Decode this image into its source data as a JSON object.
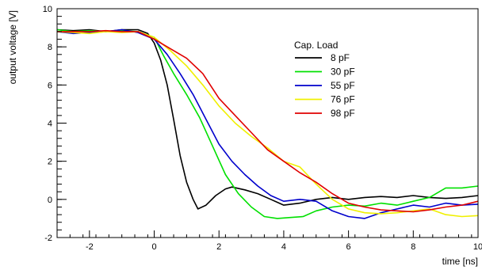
{
  "chart_data": {
    "type": "line",
    "xlabel": "time [ns]",
    "ylabel": "output voltage [V]",
    "xlim": [
      -3,
      10
    ],
    "ylim": [
      -2,
      10
    ],
    "xticks": [
      -2,
      0,
      2,
      4,
      6,
      8,
      10
    ],
    "yticks": [
      -2,
      0,
      2,
      4,
      6,
      8,
      10
    ],
    "grid": false,
    "legend": {
      "title": "Cap. Load",
      "placement": "top-right"
    },
    "series": [
      {
        "name": "8 pF",
        "color": "#000000",
        "x": [
          -3,
          -2.5,
          -2,
          -1.5,
          -1,
          -0.5,
          -0.2,
          0,
          0.2,
          0.4,
          0.6,
          0.8,
          1.0,
          1.2,
          1.35,
          1.6,
          1.9,
          2.2,
          2.4,
          2.8,
          3.2,
          3.6,
          4.0,
          4.5,
          5.0,
          5.5,
          6.0,
          6.5,
          7.0,
          7.5,
          8.0,
          8.5,
          9.0,
          9.5,
          10.0
        ],
        "y": [
          8.9,
          8.85,
          8.9,
          8.8,
          8.9,
          8.9,
          8.7,
          8.2,
          7.3,
          6.0,
          4.2,
          2.3,
          0.9,
          0.0,
          -0.5,
          -0.3,
          0.2,
          0.55,
          0.65,
          0.5,
          0.3,
          0.0,
          -0.3,
          -0.2,
          0.0,
          0.1,
          0.0,
          0.1,
          0.15,
          0.1,
          0.2,
          0.1,
          0.05,
          0.1,
          0.2
        ]
      },
      {
        "name": "30 pF",
        "color": "#00e000",
        "x": [
          -3,
          -2.5,
          -2,
          -1.5,
          -1,
          -0.5,
          0,
          0.3,
          0.6,
          1.0,
          1.4,
          1.8,
          2.2,
          2.6,
          3.0,
          3.4,
          3.8,
          4.2,
          4.6,
          5.0,
          5.5,
          6.0,
          6.5,
          7.0,
          7.5,
          8.0,
          8.5,
          9.0,
          9.5,
          10.0
        ],
        "y": [
          8.9,
          8.8,
          8.85,
          8.8,
          8.85,
          8.8,
          8.5,
          7.5,
          6.6,
          5.5,
          4.3,
          2.8,
          1.3,
          0.3,
          -0.4,
          -0.9,
          -1.0,
          -0.95,
          -0.9,
          -0.6,
          -0.4,
          -0.3,
          -0.35,
          -0.2,
          -0.3,
          -0.1,
          0.1,
          0.6,
          0.6,
          0.7
        ]
      },
      {
        "name": "55 pF",
        "color": "#0000cc",
        "x": [
          -3,
          -2.5,
          -2,
          -1.5,
          -1,
          -0.5,
          0,
          0.4,
          0.8,
          1.2,
          1.6,
          2.0,
          2.4,
          2.8,
          3.2,
          3.6,
          4.0,
          4.5,
          5.0,
          5.5,
          6.0,
          6.5,
          7.0,
          7.5,
          8.0,
          8.5,
          9.0,
          9.5,
          10.0
        ],
        "y": [
          8.8,
          8.7,
          8.75,
          8.8,
          8.9,
          8.75,
          8.4,
          7.6,
          6.6,
          5.5,
          4.2,
          2.9,
          2.0,
          1.3,
          0.7,
          0.2,
          -0.1,
          0.0,
          -0.1,
          -0.6,
          -0.9,
          -1.0,
          -0.7,
          -0.5,
          -0.3,
          -0.4,
          -0.2,
          -0.3,
          -0.25
        ]
      },
      {
        "name": "76 pF",
        "color": "#f0f000",
        "x": [
          -3,
          -2.5,
          -2,
          -1.5,
          -1,
          -0.5,
          0,
          0.5,
          1.0,
          1.5,
          2.0,
          2.5,
          3.0,
          3.5,
          4.0,
          4.5,
          5.0,
          5.5,
          6.0,
          6.5,
          7.0,
          7.5,
          8.0,
          8.5,
          9.0,
          9.5,
          10.0
        ],
        "y": [
          8.8,
          8.75,
          8.7,
          8.8,
          8.75,
          8.8,
          8.5,
          7.8,
          7.0,
          6.0,
          4.9,
          4.0,
          3.3,
          2.7,
          2.0,
          1.7,
          0.8,
          0.0,
          -0.5,
          -0.7,
          -0.75,
          -0.7,
          -0.6,
          -0.5,
          -0.8,
          -0.9,
          -0.85
        ]
      },
      {
        "name": "98 pF",
        "color": "#e00000",
        "x": [
          -3,
          -2.5,
          -2,
          -1.5,
          -1,
          -0.5,
          0,
          0.5,
          1.0,
          1.5,
          2.0,
          2.5,
          3.0,
          3.5,
          4.0,
          4.5,
          5.0,
          5.5,
          6.0,
          6.5,
          7.0,
          7.5,
          8.0,
          8.5,
          9.0,
          9.5,
          10.0
        ],
        "y": [
          8.8,
          8.8,
          8.8,
          8.85,
          8.8,
          8.8,
          8.4,
          7.9,
          7.4,
          6.6,
          5.3,
          4.4,
          3.5,
          2.6,
          2.0,
          1.4,
          0.9,
          0.3,
          -0.2,
          -0.4,
          -0.55,
          -0.6,
          -0.65,
          -0.55,
          -0.4,
          -0.3,
          -0.1
        ]
      }
    ]
  }
}
